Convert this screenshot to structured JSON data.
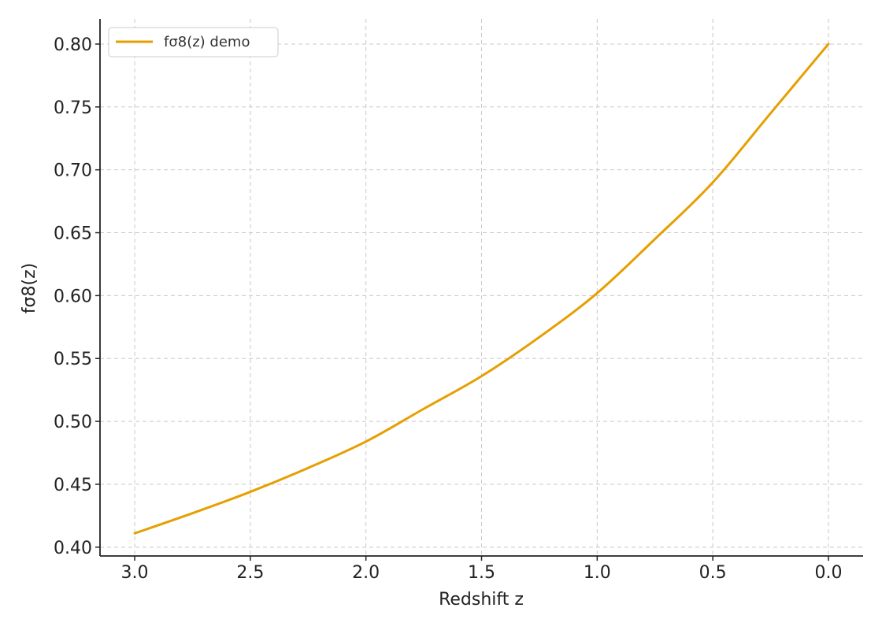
{
  "chart_data": {
    "type": "line",
    "title": "",
    "xlabel": "Redshift z",
    "ylabel": "fσ8(z)",
    "x_inverted": true,
    "xlim": [
      3.15,
      -0.15
    ],
    "ylim": [
      0.393,
      0.82
    ],
    "x_ticks": [
      3.0,
      2.5,
      2.0,
      1.5,
      1.0,
      0.5,
      0.0
    ],
    "x_tick_labels": [
      "3.0",
      "2.5",
      "2.0",
      "1.5",
      "1.0",
      "0.5",
      "0.0"
    ],
    "y_ticks": [
      0.4,
      0.45,
      0.5,
      0.55,
      0.6,
      0.65,
      0.7,
      0.75,
      0.8
    ],
    "y_tick_labels": [
      "0.40",
      "0.45",
      "0.50",
      "0.55",
      "0.60",
      "0.65",
      "0.70",
      "0.75",
      "0.80"
    ],
    "grid": true,
    "legend_position": "top-left",
    "series": [
      {
        "name": "fσ8(z) demo",
        "color": "#E69F00",
        "x": [
          0.0,
          0.25,
          0.5,
          0.75,
          1.0,
          1.25,
          1.5,
          1.75,
          2.0,
          2.25,
          2.5,
          2.75,
          3.0
        ],
        "y": [
          0.8,
          0.745,
          0.69,
          0.645,
          0.602,
          0.567,
          0.536,
          0.51,
          0.484,
          0.463,
          0.444,
          0.427,
          0.411
        ]
      }
    ]
  }
}
